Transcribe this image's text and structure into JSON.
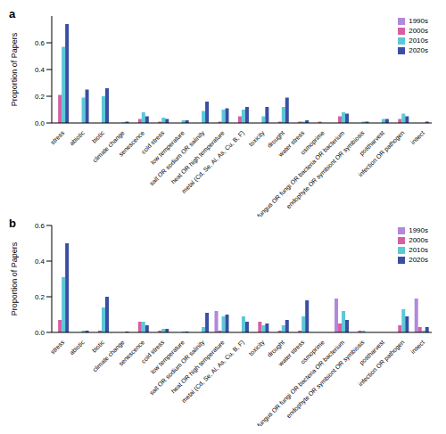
{
  "chart_data": [
    {
      "type": "bar",
      "title": "a",
      "y_label": "Proportion of Papers",
      "legend": "upper right",
      "grid": false,
      "categories": [
        "stress",
        "abiotic",
        "biotic",
        "climate change",
        "senescence",
        "cold stress",
        "low temperature",
        "salt OR sodium OR salinity",
        "heat OR high temperature",
        "metal (Cd, Se, Al, As, Cu, B, F)",
        "toxicity",
        "drought",
        "water stress",
        "osmoprime",
        "fungus OR fungi OR bacteria OR bacterium",
        "endophyte OR symbiont OR symbiosis",
        "postharvest",
        "infection OR pathogen",
        "insect"
      ],
      "ylim": [
        0,
        0.8
      ],
      "yticks": [
        {
          "value": 0,
          "label": "0.0"
        },
        0.2,
        0.4,
        0.6
      ],
      "series": [
        {
          "name": "1990s",
          "color": "#b088dc",
          "values": [
            0,
            0,
            0,
            0,
            0,
            0,
            0,
            0,
            0,
            0,
            0,
            0,
            0,
            0,
            0,
            0,
            0,
            0,
            0
          ]
        },
        {
          "name": "2000s",
          "color": "#d65fa3",
          "values": [
            0.21,
            0,
            0,
            0,
            0.03,
            0.01,
            0,
            0,
            0.01,
            0.05,
            0,
            0.01,
            0.01,
            0.01,
            0.05,
            0,
            0,
            0.03,
            0
          ]
        },
        {
          "name": "2010s",
          "color": "#5cc8d9",
          "values": [
            0.57,
            0.19,
            0.2,
            0.005,
            0.08,
            0.04,
            0.02,
            0.09,
            0.1,
            0.1,
            0.05,
            0.12,
            0.01,
            0,
            0.08,
            0.01,
            0.03,
            0.07,
            0
          ]
        },
        {
          "name": "2020s",
          "color": "#3a4fa3",
          "values": [
            0.74,
            0.25,
            0.26,
            0.01,
            0.05,
            0.03,
            0.02,
            0.16,
            0.11,
            0.12,
            0.12,
            0.19,
            0.02,
            0,
            0.07,
            0.01,
            0.03,
            0.05,
            0.01
          ]
        }
      ]
    },
    {
      "type": "bar",
      "title": "b",
      "y_label": "Proportion of Papers",
      "legend": "upper right",
      "grid": false,
      "categories": [
        "stress",
        "abiotic",
        "biotic",
        "climate change",
        "senescence",
        "cold stress",
        "low temperature",
        "salt OR sodium OR salinity",
        "heat OR high temperature",
        "metal (Cd, Se, Al, As, Cu, B, F)",
        "toxicity",
        "drought",
        "water stress",
        "osmoprime",
        "fungus OR fungi OR bacteria OR bacterium",
        "endophyte OR symbiont OR symbiosis",
        "postharvest",
        "infection OR pathogen",
        "insect"
      ],
      "ylim": [
        0,
        0.6
      ],
      "yticks": [
        {
          "value": 0,
          "label": "0.0"
        },
        0.2,
        0.4,
        0.6
      ],
      "series": [
        {
          "name": "1990s",
          "color": "#b088dc",
          "values": [
            0,
            0,
            0,
            0,
            0,
            0,
            0,
            0,
            0.12,
            0,
            0,
            0,
            0,
            0,
            0.19,
            0,
            0,
            0,
            0.19
          ]
        },
        {
          "name": "2000s",
          "color": "#d65fa3",
          "values": [
            0.07,
            0,
            0.01,
            0,
            0.06,
            0.01,
            0,
            0,
            0.01,
            0,
            0.06,
            0.01,
            0.01,
            0,
            0.05,
            0.01,
            0,
            0.04,
            0.03
          ]
        },
        {
          "name": "2010s",
          "color": "#5cc8d9",
          "values": [
            0.31,
            0.01,
            0.14,
            0,
            0.06,
            0.02,
            0.005,
            0.03,
            0.09,
            0.09,
            0.04,
            0.04,
            0.09,
            0,
            0.12,
            0.01,
            0,
            0.13,
            0.01
          ]
        },
        {
          "name": "2020s",
          "color": "#3a4fa3",
          "values": [
            0.5,
            0.01,
            0.2,
            0.005,
            0.04,
            0.02,
            0.005,
            0.11,
            0.1,
            0.06,
            0.05,
            0.07,
            0.18,
            0,
            0.07,
            0,
            0,
            0.09,
            0.03
          ]
        }
      ]
    }
  ]
}
